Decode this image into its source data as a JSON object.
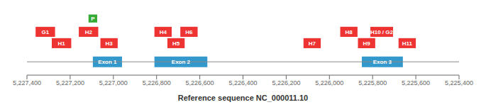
{
  "chart_data": {
    "type": "gene_map",
    "xlabel": "Reference sequence NC_000011.10",
    "xlim": [
      5227400,
      5225400
    ],
    "xticks": [
      {
        "value": 5227400,
        "label": "5,227,400"
      },
      {
        "value": 5227200,
        "label": "5,227,200"
      },
      {
        "value": 5227000,
        "label": "5,227,000"
      },
      {
        "value": 5226800,
        "label": "5,226,800"
      },
      {
        "value": 5226600,
        "label": "5,226,600"
      },
      {
        "value": 5226400,
        "label": "5,226,400"
      },
      {
        "value": 5226200,
        "label": "5,226,200"
      },
      {
        "value": 5226000,
        "label": "5,226,000"
      },
      {
        "value": 5225800,
        "label": "5,225,800"
      },
      {
        "value": 5225600,
        "label": "5,225,600"
      },
      {
        "value": 5225400,
        "label": "5,225,400"
      }
    ],
    "ylim": [
      0.0,
      10.0
    ],
    "tick_labels": "x",
    "grid": false,
    "line_y": 2.0,
    "groups": [
      {
        "color": "#3399CC",
        "y": 2.0,
        "height": 1.6,
        "boxes": [
          {
            "label": "Exon 1",
            "start": 5226960,
            "end": 5227095
          },
          {
            "label": "Exon 2",
            "start": 5226565,
            "end": 5226810
          },
          {
            "label": "Exon 3",
            "start": 5225660,
            "end": 5225850
          }
        ]
      },
      {
        "color": "#EE3333",
        "y": 6.5,
        "height": 1.5,
        "boxes": [
          {
            "label": "G1",
            "xc": 5227315,
            "w": 90
          },
          {
            "label": "H2",
            "xc": 5227115,
            "w": 90
          },
          {
            "label": "H4",
            "xc": 5226770,
            "w": 80
          },
          {
            "label": "H6",
            "xc": 5226650,
            "w": 80
          },
          {
            "label": "H8",
            "xc": 5225910,
            "w": 80
          },
          {
            "label": "H10 / G2",
            "xc": 5225758,
            "w": 105
          }
        ]
      },
      {
        "color": "#EE3333",
        "y": 4.8,
        "height": 1.5,
        "boxes": [
          {
            "label": "H1",
            "xc": 5227240,
            "w": 90
          },
          {
            "label": "H3",
            "xc": 5227020,
            "w": 80
          },
          {
            "label": "H5",
            "xc": 5226710,
            "w": 80
          },
          {
            "label": "H7",
            "xc": 5226080,
            "w": 80
          },
          {
            "label": "H9",
            "xc": 5225828,
            "w": 80
          },
          {
            "label": "H11",
            "xc": 5225640,
            "w": 80
          }
        ]
      },
      {
        "color": "#33AA33",
        "y": 8.5,
        "height": 1.2,
        "boxes": [
          {
            "label": "P",
            "xc": 5227095,
            "w": 40
          }
        ]
      }
    ]
  }
}
